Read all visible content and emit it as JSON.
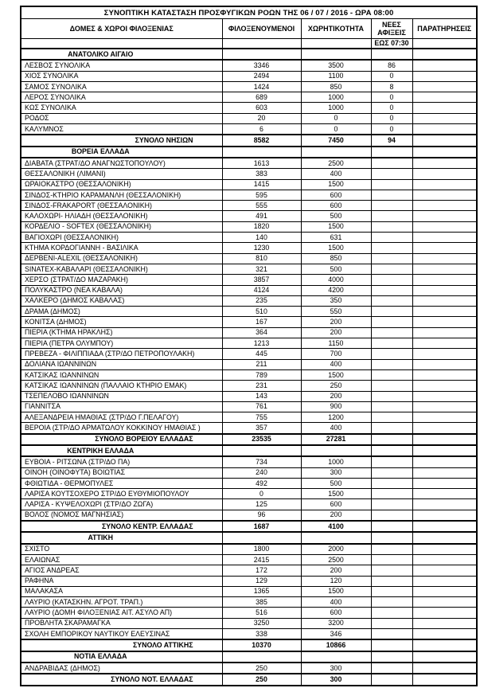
{
  "title": "ΣΥΝΟΠΤΙΚΗ ΚΑΤΑΣΤΑΣΗ ΠΡΟΣΦΥΓΙΚΩΝ ΡΟΩΝ ΤΗΣ 06 / 07 / 2016 - ΩΡΑ 08:00",
  "columns": {
    "facilities": "ΔΟΜΕΣ & ΧΩΡΟΙ ΦΙΛΟΞΕΝΙΑΣ",
    "guests": "ΦΙΛΟΞΕΝΟΥΜΕΝΟΙ",
    "capacity": "ΧΩΡΗΤΙΚΟΤΗΤΑ",
    "new_arrivals": "ΝΕΕΣ ΑΦΙΞΕΙΣ",
    "new_arrivals_until": "ΕΩΣ 07:30",
    "remarks": "ΠΑΡΑΤΗΡΗΣΕΙΣ"
  },
  "sections": [
    {
      "name": "ΑΝΑΤΟΛΙΚΟ ΑΙΓΑΙΟ",
      "rows": [
        {
          "label": "ΛΕΣΒΟΣ ΣΥΝΟΛΙΚΑ",
          "guests": "3346",
          "capacity": "3500",
          "arrivals": "86",
          "remarks": ""
        },
        {
          "label": "ΧΙΟΣ ΣΥΝΟΛΙΚΑ",
          "guests": "2494",
          "capacity": "1100",
          "arrivals": "0",
          "remarks": ""
        },
        {
          "label": "ΣΑΜΟΣ ΣΥΝΟΛΙΚΑ",
          "guests": "1424",
          "capacity": "850",
          "arrivals": "8",
          "remarks": ""
        },
        {
          "label": "ΛΕΡΟΣ ΣΥΝΟΛΙΚΑ",
          "guests": "689",
          "capacity": "1000",
          "arrivals": "0",
          "remarks": ""
        },
        {
          "label": "ΚΩΣ ΣΥΝΟΛΙΚΑ",
          "guests": "603",
          "capacity": "1000",
          "arrivals": "0",
          "remarks": ""
        },
        {
          "label": "ΡΟΔΟΣ",
          "guests": "20",
          "capacity": "0",
          "arrivals": "0",
          "remarks": ""
        },
        {
          "label": "ΚΑΛΥΜΝΟΣ",
          "guests": "6",
          "capacity": "0",
          "arrivals": "0",
          "remarks": ""
        }
      ],
      "total": {
        "label": "ΣΥΝΟΛΟ ΝΗΣΙΩΝ",
        "guests": "8582",
        "capacity": "7450",
        "arrivals": "94",
        "remarks": ""
      }
    },
    {
      "name": "ΒΟΡΕΙΑ ΕΛΛΑΔΑ",
      "rows": [
        {
          "label": "ΔΙΑΒΑΤΑ (ΣΤΡΑΤ/ΔΟ ΑΝΑΓΝΩΣΤΟΠΟΥΛΟΥ)",
          "guests": "1613",
          "capacity": "2500",
          "arrivals": "",
          "remarks": ""
        },
        {
          "label": "ΘΕΣΣΑΛΟΝΙΚΗ (ΛΙΜΑΝΙ)",
          "guests": "383",
          "capacity": "400",
          "arrivals": "",
          "remarks": ""
        },
        {
          "label": "ΩΡΑΙΟΚΑΣΤΡΟ (ΘΕΣΣΑΛΟΝΙΚΗ)",
          "guests": "1415",
          "capacity": "1500",
          "arrivals": "",
          "remarks": ""
        },
        {
          "label": "ΣΙΝΔΟΣ-ΚΤΗΡΙΟ ΚΑΡΑΜΑΝΛΗ (ΘΕΣΣΑΛΟΝΙΚΗ)",
          "guests": "595",
          "capacity": "600",
          "arrivals": "",
          "remarks": ""
        },
        {
          "label": "ΣΙΝΔΟΣ-FRAKAPORT (ΘΕΣΣΑΛΟΝΙΚΗ)",
          "guests": "555",
          "capacity": "600",
          "arrivals": "",
          "remarks": ""
        },
        {
          "label": "ΚΑΛΟΧΩΡΙ- ΗΛΙΑΔΗ (ΘΕΣΣΑΛΟΝΙΚΗ)",
          "guests": "491",
          "capacity": "500",
          "arrivals": "",
          "remarks": ""
        },
        {
          "label": "ΚΟΡΔΕΛΙΟ - SOFTEX (ΘΕΣΣΑΛΟΝΙΚΗ)",
          "guests": "1820",
          "capacity": "1500",
          "arrivals": "",
          "remarks": ""
        },
        {
          "label": "ΒΑΓΙΟΧΩΡΙ (ΘΕΣΣΑΛΟΝΙΚΗ)",
          "guests": "140",
          "capacity": "631",
          "arrivals": "",
          "remarks": ""
        },
        {
          "label": "ΚΤΗΜΑ ΚΟΡΔΟΓΙΑΝΝΗ - ΒΑΣΙΛΙΚΑ",
          "guests": "1230",
          "capacity": "1500",
          "arrivals": "",
          "remarks": ""
        },
        {
          "label": "ΔΕΡΒΕΝΙ-ALEXIL (ΘΕΣΣΑΛΟΝΙΚΗ)",
          "guests": "810",
          "capacity": "850",
          "arrivals": "",
          "remarks": ""
        },
        {
          "label": "SINATEX-ΚΑΒΑΛΑΡΙ (ΘΕΣΣΑΛΟΝΙΚΗ)",
          "guests": "321",
          "capacity": "500",
          "arrivals": "",
          "remarks": ""
        },
        {
          "label": "ΧΕΡΣΟ (ΣΤΡΑΤ/ΔΟ ΜΑΖΑΡΑΚΗ)",
          "guests": "3857",
          "capacity": "4000",
          "arrivals": "",
          "remarks": ""
        },
        {
          "label": "ΠΟΛΥΚΑΣΤΡΟ (ΝΕΑ ΚΑΒΑΛΑ)",
          "guests": "4124",
          "capacity": "4200",
          "arrivals": "",
          "remarks": ""
        },
        {
          "label": "ΧΑΛΚΕΡΟ (ΔΗΜΟΣ ΚΑΒΑΛΑΣ)",
          "guests": "235",
          "capacity": "350",
          "arrivals": "",
          "remarks": ""
        },
        {
          "label": "ΔΡΑΜΑ (ΔΗΜΟΣ)",
          "guests": "510",
          "capacity": "550",
          "arrivals": "",
          "remarks": ""
        },
        {
          "label": "ΚΟΝΙΤΣΑ (ΔΗΜΟΣ)",
          "guests": "167",
          "capacity": "200",
          "arrivals": "",
          "remarks": ""
        },
        {
          "label": "ΠΙΕΡΙΑ (ΚΤΗΜΑ ΗΡΑΚΛΗΣ)",
          "guests": "364",
          "capacity": "200",
          "arrivals": "",
          "remarks": ""
        },
        {
          "label": "ΠΙΕΡΙΑ (ΠΕΤΡΑ ΟΛΥΜΠΟΥ)",
          "guests": "1213",
          "capacity": "1150",
          "arrivals": "",
          "remarks": ""
        },
        {
          "label": "ΠΡΕΒΕΖΑ - ΦΙΛΙΠΠΙΑΔΑ (ΣΤΡ/ΔΟ ΠΕΤΡΟΠΟΥΛΑΚΗ)",
          "guests": "445",
          "capacity": "700",
          "arrivals": "",
          "remarks": ""
        },
        {
          "label": "ΔΟΛΙΑΝΑ ΙΩΑΝΝΙΝΩΝ",
          "guests": "211",
          "capacity": "400",
          "arrivals": "",
          "remarks": ""
        },
        {
          "label": "ΚΑΤΣΙΚΑΣ ΙΩΑΝΝΙΝΩΝ",
          "guests": "789",
          "capacity": "1500",
          "arrivals": "",
          "remarks": ""
        },
        {
          "label": "ΚΑΤΣΙΚΑΣ ΙΩΑΝΝΙΝΩΝ (ΠΑΛΛΑΙΟ ΚΤΗΡΙΟ ΕΜΑΚ)",
          "guests": "231",
          "capacity": "250",
          "arrivals": "",
          "remarks": ""
        },
        {
          "label": "ΤΣΕΠΕΛΟΒΟ ΙΩΑΝΝΙΝΩΝ",
          "guests": "143",
          "capacity": "200",
          "arrivals": "",
          "remarks": ""
        },
        {
          "label": "ΓΙΑΝΝΙΤΣΑ",
          "guests": "761",
          "capacity": "900",
          "arrivals": "",
          "remarks": ""
        },
        {
          "label": "ΑΛΕΞΑΝΔΡΕΙΑ ΗΜΑΘΙΑΣ (ΣΤΡ/ΔΟ Γ.ΠΕΛΑΓΟΥ)",
          "guests": "755",
          "capacity": "1200",
          "arrivals": "",
          "remarks": ""
        },
        {
          "label": "ΒΕΡΟΙΑ (ΣΤΡ/ΔΟ ΑΡΜΑΤΩΛΟΥ ΚΟΚΚΙΝΟΥ ΗΜΑΘΙΑΣ )",
          "guests": "357",
          "capacity": "400",
          "arrivals": "",
          "remarks": ""
        }
      ],
      "total": {
        "label": "ΣΥΝΟΛΟ ΒΟΡΕΙΟΥ ΕΛΛΑΔΑΣ",
        "guests": "23535",
        "capacity": "27281",
        "arrivals": "",
        "remarks": ""
      }
    },
    {
      "name": "ΚΕΝΤΡΙΚΗ ΕΛΛΑΔΑ",
      "rows": [
        {
          "label": "ΕΥΒΟΙΑ - ΡΙΤΣΩΝΑ (ΣΤΡ/ΔΟ ΠΑ)",
          "guests": "734",
          "capacity": "1000",
          "arrivals": "",
          "remarks": ""
        },
        {
          "label": "ΟΙΝΟΗ (ΟΙΝΟΦΥΤΑ) ΒΟΙΩΤΙΑΣ",
          "guests": "240",
          "capacity": "300",
          "arrivals": "",
          "remarks": ""
        },
        {
          "label": "ΦΘΙΩΤΙΔΑ - ΘΕΡΜΟΠΥΛΕΣ",
          "guests": "492",
          "capacity": "500",
          "arrivals": "",
          "remarks": ""
        },
        {
          "label": "ΛΑΡΙΣΑ ΚΟΥΤΣΟΧΕΡΟ ΣΤΡ/ΔΟ ΕΥΘΥΜΙΟΠΟΥΛΟΥ",
          "guests": "0",
          "capacity": "1500",
          "arrivals": "",
          "remarks": ""
        },
        {
          "label": "ΛΑΡΙΣΑ - ΚΥΨΕΛΟΧΩΡΙ (ΣΤΡ/ΔΟ ΖΩΓΑ)",
          "guests": "125",
          "capacity": "600",
          "arrivals": "",
          "remarks": ""
        },
        {
          "label": "ΒΟΛΟΣ (ΝΟΜΟΣ ΜΑΓΝΗΣΙΑΣ)",
          "guests": "96",
          "capacity": "200",
          "arrivals": "",
          "remarks": ""
        }
      ],
      "total": {
        "label": "ΣΥΝΟΛΟ ΚΕΝΤΡ. ΕΛΛΑΔΑΣ",
        "guests": "1687",
        "capacity": "4100",
        "arrivals": "",
        "remarks": ""
      }
    },
    {
      "name": "ΑΤΤΙΚΗ",
      "rows": [
        {
          "label": "ΣΧΙΣΤΟ",
          "guests": "1800",
          "capacity": "2000",
          "arrivals": "",
          "remarks": ""
        },
        {
          "label": "ΕΛΑΙΩΝΑΣ",
          "guests": "2415",
          "capacity": "2500",
          "arrivals": "",
          "remarks": ""
        },
        {
          "label": "ΑΓΙΟΣ ΑΝΔΡΕΑΣ",
          "guests": "172",
          "capacity": "200",
          "arrivals": "",
          "remarks": ""
        },
        {
          "label": "ΡΑΦΗΝΑ",
          "guests": "129",
          "capacity": "120",
          "arrivals": "",
          "remarks": ""
        },
        {
          "label": "ΜΑΛΑΚΑΣΑ",
          "guests": "1365",
          "capacity": "1500",
          "arrivals": "",
          "remarks": ""
        },
        {
          "label": "ΛΑΥΡΙΟ (ΚΑΤΑΣΚΗΝ. ΑΓΡΟΤ. ΤΡΑΠ.)",
          "guests": "385",
          "capacity": "400",
          "arrivals": "",
          "remarks": ""
        },
        {
          "label": "ΛΑΥΡΙΟ (ΔΟΜΗ ΦΙΛΟΞΕΝΙΑΣ ΑΙΤ. ΑΣΥΛΟ ΑΠ)",
          "guests": "516",
          "capacity": "600",
          "arrivals": "",
          "remarks": ""
        },
        {
          "label": "ΠΡΟΒΛΗΤΑ ΣΚΑΡΑΜΑΓΚΑ",
          "guests": "3250",
          "capacity": "3200",
          "arrivals": "",
          "remarks": ""
        },
        {
          "label": "ΣΧΟΛΗ ΕΜΠΟΡΙΚΟΥ ΝΑΥΤΙΚΟΥ ΕΛΕΥΣΙΝΑΣ",
          "guests": "338",
          "capacity": "346",
          "arrivals": "",
          "remarks": ""
        }
      ],
      "total": {
        "label": "ΣΥΝΟΛΟ ΑΤΤΙΚΗΣ",
        "guests": "10370",
        "capacity": "10866",
        "arrivals": "",
        "remarks": ""
      }
    },
    {
      "name": "ΝΟΤΙΑ ΕΛΛΑΔΑ",
      "rows": [
        {
          "label": "ΑΝΔΡΑΒΙΔΑΣ (ΔΗΜΟΣ)",
          "guests": "250",
          "capacity": "300",
          "arrivals": "",
          "remarks": ""
        }
      ],
      "total": {
        "label": "ΣΥΝΟΛΟ ΝΟΤ. ΕΛΛΑΔΑΣ",
        "guests": "250",
        "capacity": "300",
        "arrivals": "",
        "remarks": ""
      }
    }
  ]
}
